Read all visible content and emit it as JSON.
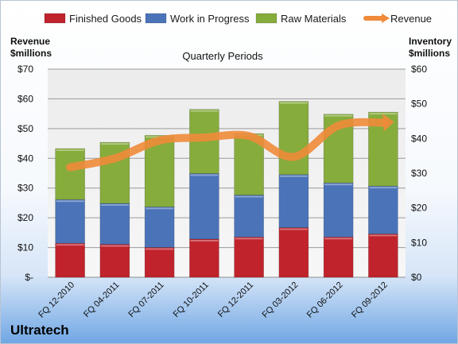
{
  "chart_data": {
    "type": "bar",
    "stacked": true,
    "title": "Quarterly Periods",
    "company": "Ultratech",
    "categories": [
      "FQ 12-2010",
      "FQ 04-2011",
      "FQ 07-2011",
      "FQ 10-2011",
      "FQ 12-2011",
      "FQ 03-2012",
      "FQ 06-2012",
      "FQ 09-2012"
    ],
    "series": [
      {
        "name": "Finished Goods",
        "axis": "right",
        "color": "#c0232c",
        "values": [
          9.8,
          9.5,
          8.6,
          11.0,
          11.6,
          14.3,
          11.6,
          12.5
        ]
      },
      {
        "name": "Work in Progress",
        "axis": "right",
        "color": "#4a73b8",
        "values": [
          12.6,
          11.8,
          11.7,
          18.9,
          12.1,
          15.3,
          15.6,
          13.8
        ]
      },
      {
        "name": "Raw Materials",
        "axis": "right",
        "color": "#86ac3c",
        "values": [
          14.7,
          17.6,
          20.6,
          18.5,
          17.7,
          21.1,
          19.8,
          21.3
        ]
      },
      {
        "name": "Revenue",
        "type": "line",
        "axis": "left",
        "color": "#ef8b3a",
        "values": [
          37.0,
          40.0,
          46.0,
          47.0,
          47.5,
          40.5,
          51.0,
          52.0
        ]
      }
    ],
    "left_axis": {
      "label": "Revenue\n$millions",
      "ylim": [
        0,
        70
      ],
      "ticks": [
        "$-",
        "$10",
        "$20",
        "$30",
        "$40",
        "$50",
        "$60",
        "$70"
      ]
    },
    "right_axis": {
      "label": "Inventory\n$millions",
      "ylim": [
        0,
        60
      ],
      "ticks": [
        "$0",
        "$10",
        "$20",
        "$30",
        "$40",
        "$50",
        "$60"
      ]
    },
    "grid": true,
    "legend_position": "top"
  }
}
